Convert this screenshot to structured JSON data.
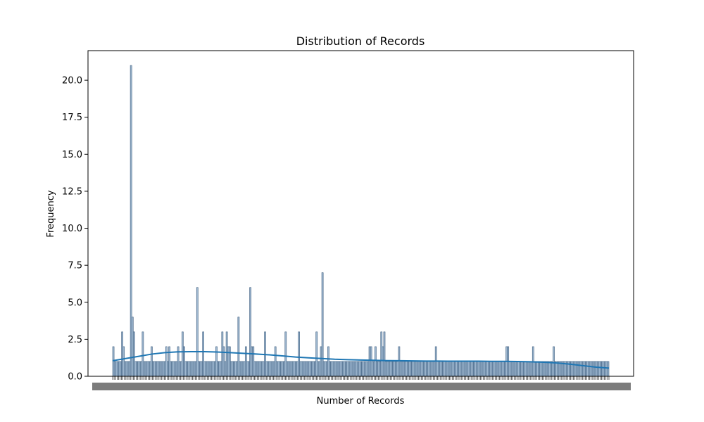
{
  "chart_data": {
    "type": "bar",
    "title": "Distribution of Records",
    "xlabel": "Number of Records",
    "ylabel": "Frequency",
    "ylim": [
      0,
      22
    ],
    "yticks": [
      0.0,
      2.5,
      5.0,
      7.5,
      10.0,
      12.5,
      15.0,
      17.5,
      20.0,
      22.5
    ],
    "ytick_labels": [
      "0.0",
      "2.5",
      "5.0",
      "7.5",
      "10.0",
      "12.5",
      "15.0",
      "17.5",
      "20.0"
    ],
    "xtick_labels_note": "",
    "bar_count": 280,
    "bar_color": "#9fb8d0",
    "bar_edge_color": "#3f5f80",
    "kde_color": "#1f77b4",
    "values": [
      2,
      1,
      1,
      1,
      1,
      1,
      3,
      2,
      1,
      1,
      1,
      1,
      21,
      4,
      3,
      1,
      1,
      1,
      1,
      1,
      3,
      1,
      1,
      1,
      1,
      1,
      2,
      1,
      1,
      1,
      1,
      1,
      1,
      1,
      1,
      1,
      2,
      1,
      2,
      1,
      1,
      1,
      1,
      1,
      2,
      1,
      1,
      3,
      2,
      1,
      1,
      1,
      1,
      1,
      1,
      1,
      1,
      6,
      1,
      1,
      1,
      3,
      1,
      1,
      1,
      1,
      1,
      1,
      1,
      1,
      2,
      1,
      1,
      1,
      3,
      2,
      1,
      3,
      2,
      2,
      1,
      1,
      1,
      1,
      1,
      4,
      1,
      1,
      1,
      1,
      2,
      1,
      1,
      6,
      2,
      2,
      1,
      1,
      1,
      1,
      1,
      1,
      1,
      3,
      1,
      1,
      1,
      1,
      1,
      1,
      2,
      1,
      1,
      1,
      1,
      1,
      1,
      3,
      1,
      1,
      1,
      1,
      1,
      1,
      1,
      1,
      3,
      1,
      1,
      1,
      1,
      1,
      1,
      1,
      1,
      1,
      1,
      1,
      3,
      1,
      1,
      2,
      7,
      1,
      1,
      1,
      2,
      1,
      1,
      1,
      1,
      1,
      1,
      1,
      1,
      1,
      1,
      1,
      1,
      1,
      1,
      1,
      1,
      1,
      1,
      1,
      1,
      1,
      1,
      1,
      1,
      1,
      1,
      1,
      2,
      2,
      1,
      1,
      2,
      1,
      1,
      1,
      3,
      2,
      3,
      1,
      1,
      1,
      1,
      1,
      1,
      1,
      1,
      1,
      2,
      1,
      1,
      1,
      1,
      1,
      1,
      1,
      1,
      1,
      1,
      1,
      1,
      1,
      1,
      1,
      1,
      1,
      1,
      1,
      1,
      1,
      1,
      1,
      1,
      2,
      1,
      1,
      1,
      1,
      1,
      1,
      1,
      1,
      1,
      1,
      1,
      1,
      1,
      1,
      1,
      1,
      1,
      1,
      1,
      1,
      1,
      1,
      1,
      1,
      1,
      1,
      1,
      1,
      1,
      1,
      1,
      1,
      1,
      1,
      1,
      1,
      1,
      1,
      1,
      1,
      1,
      1,
      1,
      1,
      1,
      1,
      1,
      2,
      2,
      1,
      1,
      1,
      1,
      1,
      1,
      1,
      1,
      1,
      1,
      1,
      1,
      1,
      1,
      1,
      1,
      2,
      1,
      1,
      1,
      1,
      1,
      1,
      1,
      1,
      1,
      1,
      1,
      1,
      1,
      2,
      1,
      1,
      1,
      1,
      1,
      1,
      1,
      1,
      1,
      1,
      1,
      1,
      1,
      1,
      1,
      1,
      1,
      1,
      1,
      1,
      1,
      1,
      1,
      1,
      1,
      1,
      1,
      1,
      1,
      1,
      1,
      1,
      1,
      1,
      1,
      1,
      1
    ],
    "kde": [
      1.05,
      1.2,
      1.35,
      1.5,
      1.6,
      1.65,
      1.66,
      1.66,
      1.64,
      1.6,
      1.55,
      1.5,
      1.45,
      1.38,
      1.3,
      1.25,
      1.2,
      1.15,
      1.12,
      1.1,
      1.08,
      1.06,
      1.05,
      1.04,
      1.03,
      1.03,
      1.02,
      1.02,
      1.02,
      1.01,
      1.01,
      1.0,
      0.98,
      0.95,
      0.9,
      0.82,
      0.72,
      0.62,
      0.55
    ],
    "grid": false,
    "legend": "none"
  }
}
